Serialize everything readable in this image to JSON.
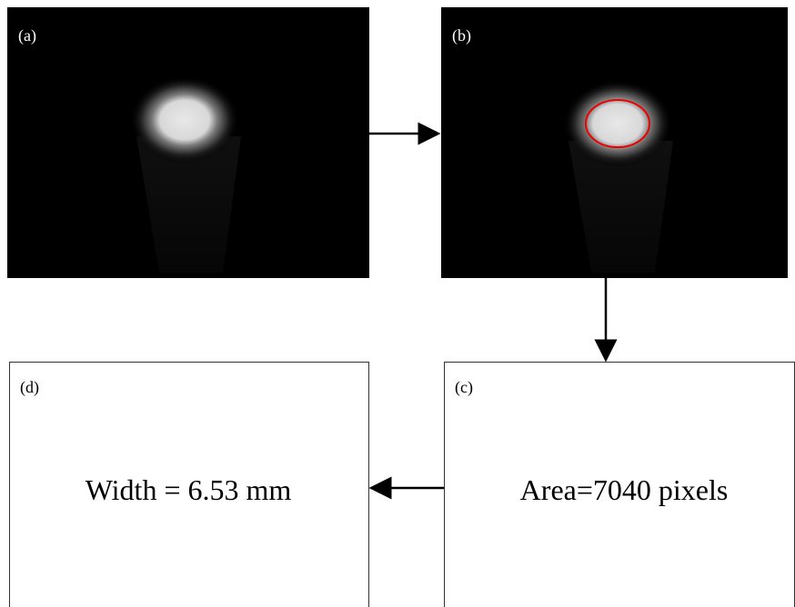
{
  "panels": [
    {
      "label": "(a)"
    },
    {
      "label": "(b)"
    },
    {
      "label": "(c)",
      "text": "Area=7040 pixels"
    },
    {
      "label": "(d)",
      "text": "Width = 6.53 mm"
    }
  ]
}
